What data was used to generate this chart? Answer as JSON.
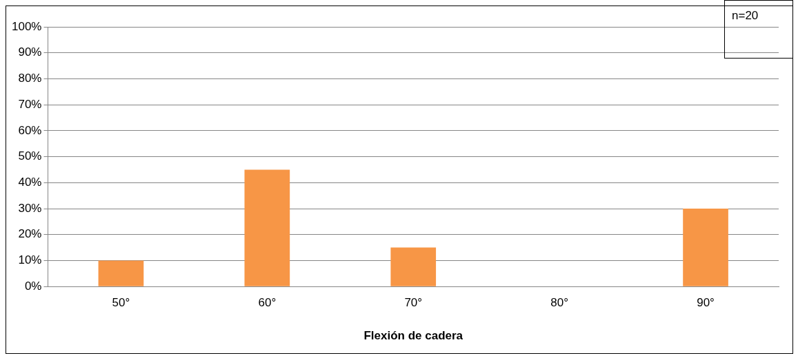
{
  "chart_data": {
    "type": "bar",
    "xlabel": "Flexión de cadera",
    "categories": [
      "50°",
      "60°",
      "70°",
      "80°",
      "90°"
    ],
    "values": [
      10,
      45,
      15,
      0,
      30
    ],
    "color": "#f79646",
    "ylim": [
      0,
      100
    ],
    "yticks": [
      {
        "value": 0,
        "label": "0%"
      },
      {
        "value": 10,
        "label": "10%"
      },
      {
        "value": 20,
        "label": "20%"
      },
      {
        "value": 30,
        "label": "30%"
      },
      {
        "value": 40,
        "label": "40%"
      },
      {
        "value": 50,
        "label": "50%"
      },
      {
        "value": 60,
        "label": "60%"
      },
      {
        "value": 70,
        "label": "70%"
      },
      {
        "value": 80,
        "label": "80%"
      },
      {
        "value": 90,
        "label": "90%"
      },
      {
        "value": 100,
        "label": "100%"
      }
    ],
    "grid": "y",
    "annotations": [
      "n=20"
    ]
  }
}
